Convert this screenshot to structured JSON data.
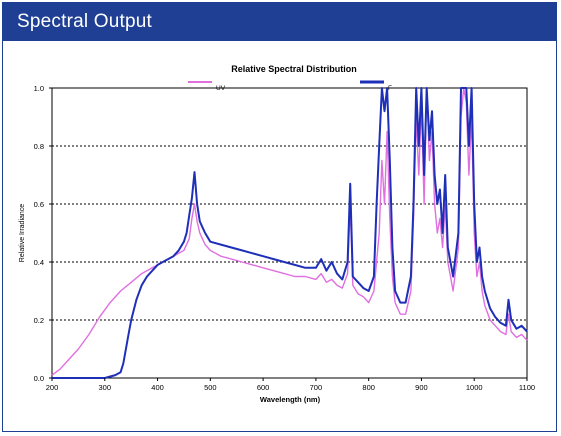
{
  "header": {
    "title": "Spectral Output"
  },
  "colors": {
    "header_bg": "#1f3f94",
    "uv_series": "#e070e0",
    "f_series": "#1e2fb8"
  },
  "chart_data": {
    "type": "line",
    "title": "Relative Spectral Distribution",
    "xlabel": "Wavelength (nm)",
    "ylabel": "Relative Irradiance",
    "xlim": [
      200,
      1100
    ],
    "ylim": [
      0,
      1.0
    ],
    "xticks": [
      "200",
      "300",
      "400",
      "500",
      "600",
      "700",
      "800",
      "900",
      "1000",
      "1100"
    ],
    "yticks": [
      "0.0",
      "0.2",
      "0.4",
      "0.6",
      "0.8",
      "1.0"
    ],
    "grid": "horizontal dotted",
    "legend": "top",
    "series": [
      {
        "name": "UV",
        "color": "#e070e0",
        "x": [
          200,
          215,
          230,
          250,
          270,
          290,
          310,
          330,
          350,
          370,
          390,
          410,
          430,
          450,
          460,
          465,
          470,
          475,
          480,
          490,
          500,
          520,
          540,
          560,
          580,
          600,
          620,
          640,
          660,
          680,
          700,
          710,
          720,
          730,
          740,
          750,
          760,
          765,
          770,
          780,
          790,
          800,
          810,
          820,
          825,
          830,
          835,
          840,
          845,
          850,
          860,
          870,
          880,
          885,
          890,
          895,
          900,
          905,
          910,
          915,
          920,
          925,
          930,
          935,
          940,
          945,
          950,
          955,
          960,
          970,
          975,
          980,
          985,
          990,
          995,
          1000,
          1005,
          1010,
          1015,
          1020,
          1030,
          1040,
          1050,
          1060,
          1065,
          1070,
          1080,
          1090,
          1100
        ],
        "y": [
          0.01,
          0.03,
          0.06,
          0.1,
          0.15,
          0.21,
          0.26,
          0.3,
          0.33,
          0.36,
          0.38,
          0.4,
          0.42,
          0.44,
          0.48,
          0.55,
          0.6,
          0.54,
          0.5,
          0.46,
          0.44,
          0.42,
          0.41,
          0.4,
          0.39,
          0.38,
          0.37,
          0.36,
          0.35,
          0.35,
          0.34,
          0.36,
          0.33,
          0.34,
          0.32,
          0.31,
          0.36,
          0.6,
          0.32,
          0.29,
          0.28,
          0.26,
          0.3,
          0.5,
          0.75,
          0.6,
          0.85,
          0.55,
          0.35,
          0.26,
          0.22,
          0.22,
          0.3,
          0.55,
          0.9,
          0.7,
          0.95,
          0.6,
          1.0,
          0.75,
          0.85,
          0.6,
          0.5,
          0.55,
          0.45,
          0.6,
          0.4,
          0.35,
          0.3,
          0.45,
          0.9,
          1.0,
          0.95,
          0.7,
          0.9,
          0.5,
          0.35,
          0.4,
          0.3,
          0.25,
          0.2,
          0.18,
          0.16,
          0.15,
          0.22,
          0.16,
          0.14,
          0.15,
          0.13
        ]
      },
      {
        "name": "F",
        "color": "#1e2fb8",
        "x": [
          200,
          260,
          300,
          320,
          330,
          335,
          340,
          345,
          350,
          360,
          370,
          380,
          390,
          400,
          410,
          420,
          430,
          440,
          450,
          455,
          460,
          465,
          470,
          475,
          480,
          485,
          490,
          500,
          520,
          540,
          560,
          580,
          600,
          620,
          640,
          660,
          680,
          700,
          710,
          720,
          730,
          740,
          750,
          760,
          765,
          770,
          780,
          790,
          800,
          810,
          815,
          820,
          825,
          830,
          835,
          840,
          845,
          850,
          860,
          870,
          880,
          885,
          890,
          895,
          900,
          905,
          910,
          915,
          920,
          925,
          930,
          935,
          940,
          945,
          950,
          955,
          960,
          970,
          975,
          980,
          985,
          990,
          995,
          1000,
          1005,
          1010,
          1015,
          1020,
          1030,
          1040,
          1050,
          1060,
          1065,
          1070,
          1080,
          1090,
          1100
        ],
        "y": [
          0.0,
          0.0,
          0.0,
          0.01,
          0.02,
          0.05,
          0.1,
          0.15,
          0.2,
          0.27,
          0.32,
          0.35,
          0.37,
          0.39,
          0.4,
          0.41,
          0.42,
          0.44,
          0.47,
          0.5,
          0.56,
          0.62,
          0.71,
          0.6,
          0.54,
          0.52,
          0.5,
          0.47,
          0.46,
          0.45,
          0.44,
          0.43,
          0.42,
          0.41,
          0.4,
          0.39,
          0.38,
          0.38,
          0.41,
          0.37,
          0.4,
          0.36,
          0.34,
          0.4,
          0.67,
          0.35,
          0.33,
          0.31,
          0.3,
          0.35,
          0.6,
          0.8,
          1.0,
          0.92,
          1.0,
          0.75,
          0.45,
          0.3,
          0.26,
          0.26,
          0.35,
          0.6,
          1.0,
          0.8,
          1.0,
          0.7,
          1.0,
          0.82,
          0.92,
          0.7,
          0.6,
          0.65,
          0.5,
          0.7,
          0.45,
          0.4,
          0.35,
          0.5,
          1.0,
          1.0,
          1.0,
          0.8,
          1.0,
          0.6,
          0.4,
          0.45,
          0.35,
          0.3,
          0.24,
          0.21,
          0.19,
          0.18,
          0.27,
          0.2,
          0.17,
          0.18,
          0.16
        ]
      }
    ]
  }
}
